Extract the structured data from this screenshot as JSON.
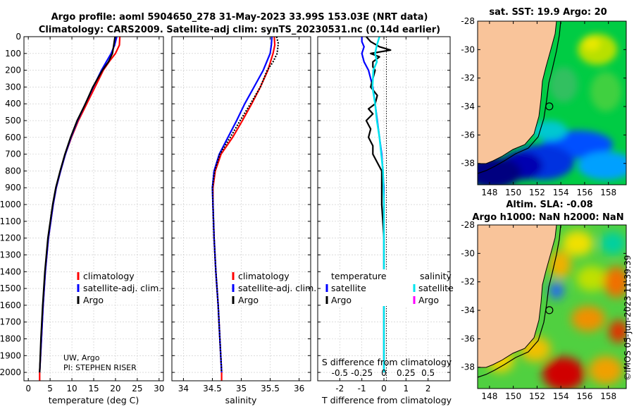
{
  "title": {
    "line1": "Argo profile: aoml 5904650_278 31-May-2023 33.99S 153.03E (NRT data)",
    "line2": "Climatology: CARS2009. Satellite-adj clim: synTS_20230531.nc (0.14d earlier)"
  },
  "credit": {
    "line1": "UW, Argo",
    "line2": "PI: STEPHEN RISER"
  },
  "watermark": "©IMOS 05-Jun-2023 11:39:39",
  "colors": {
    "climatology": "#ff0000",
    "satellite": "#0000ff",
    "argo": "#000000",
    "sal_sat": "#00e5ee",
    "sal_argo": "#ff00ff",
    "land": "#f9c49a"
  },
  "legend1": {
    "climatology": "climatology",
    "satellite": "satellite-adj. clim.",
    "argo": "Argo"
  },
  "legend3": {
    "temperature_header": "temperature",
    "salinity_header": "salinity",
    "t_sat": "satellite",
    "t_argo": "Argo",
    "s_sat": "satellite",
    "s_argo": "Argo"
  },
  "chart_data": [
    {
      "type": "line",
      "id": "temperature",
      "xlabel": "temperature (deg C)",
      "ylabel": "",
      "xlim": [
        -1,
        31
      ],
      "ylim": [
        2050,
        0
      ],
      "xticks": [
        "0",
        "5",
        "10",
        "15",
        "20",
        "25",
        "30"
      ],
      "yticks": [
        "0",
        "100",
        "200",
        "300",
        "400",
        "500",
        "600",
        "700",
        "800",
        "900",
        "1000",
        "1100",
        "1200",
        "1300",
        "1400",
        "1500",
        "1600",
        "1700",
        "1800",
        "1900",
        "2000"
      ],
      "series": [
        {
          "name": "climatology",
          "depth": [
            0,
            50,
            100,
            150,
            200,
            300,
            400,
            500,
            600,
            700,
            800,
            900,
            1000,
            1200,
            1400,
            1600,
            1800,
            2000,
            2050
          ],
          "values": [
            21.0,
            20.9,
            20.0,
            18.5,
            17.2,
            15.3,
            13.4,
            11.5,
            9.9,
            8.5,
            7.4,
            6.4,
            5.7,
            4.6,
            3.9,
            3.4,
            3.0,
            2.6,
            2.6
          ]
        },
        {
          "name": "satellite-adj. clim.",
          "depth": [
            0,
            50,
            100,
            150,
            200,
            300,
            400,
            500,
            600,
            700,
            800,
            900,
            1000,
            1200,
            1400,
            1600,
            1800,
            2000
          ],
          "values": [
            20.3,
            19.8,
            19.0,
            17.9,
            16.8,
            14.9,
            13.1,
            11.3,
            9.8,
            8.5,
            7.4,
            6.4,
            5.7,
            4.6,
            3.9,
            3.4,
            3.0,
            2.6
          ]
        },
        {
          "name": "Argo",
          "depth": [
            0,
            50,
            100,
            150,
            200,
            300,
            400,
            500,
            600,
            700,
            800,
            900,
            1000,
            1200,
            1400,
            1600,
            1800,
            2000
          ],
          "values": [
            19.9,
            19.6,
            19.3,
            18.4,
            17.0,
            14.8,
            13.1,
            11.2,
            9.7,
            8.4,
            7.3,
            6.3,
            5.6,
            4.5,
            3.8,
            3.3,
            2.9,
            2.6
          ]
        }
      ]
    },
    {
      "type": "line",
      "id": "salinity",
      "xlabel": "salinity",
      "ylabel": "",
      "xlim": [
        33.8,
        36.2
      ],
      "ylim": [
        2050,
        0
      ],
      "xticks": [
        "34",
        "34.5",
        "35",
        "35.5",
        "36"
      ],
      "series": [
        {
          "name": "climatology",
          "depth": [
            0,
            50,
            100,
            200,
            300,
            400,
            500,
            600,
            700,
            800,
            900,
            1000,
            1200,
            1400,
            1600,
            1800,
            2000,
            2050
          ],
          "values": [
            35.57,
            35.58,
            35.55,
            35.46,
            35.33,
            35.18,
            35.02,
            34.85,
            34.65,
            34.55,
            34.51,
            34.51,
            34.53,
            34.56,
            34.6,
            34.63,
            34.66,
            34.66
          ]
        },
        {
          "name": "satellite-adj. clim.",
          "depth": [
            0,
            50,
            100,
            200,
            300,
            400,
            500,
            600,
            700,
            800,
            900,
            1000,
            1200,
            1400,
            1600,
            1800,
            2000
          ],
          "values": [
            35.53,
            35.52,
            35.5,
            35.38,
            35.22,
            35.06,
            34.92,
            34.77,
            34.62,
            34.53,
            34.5,
            34.51,
            34.53,
            34.56,
            34.6,
            34.63,
            34.66
          ]
        },
        {
          "name": "Argo",
          "depth": [
            0,
            40,
            100,
            150,
            200,
            300,
            400,
            500,
            600,
            700,
            800,
            900,
            1000,
            1200,
            1400,
            1600,
            1800,
            2000
          ],
          "values": [
            35.61,
            35.64,
            35.62,
            35.55,
            35.45,
            35.33,
            35.16,
            34.98,
            34.81,
            34.63,
            34.54,
            34.5,
            34.51,
            34.53,
            34.56,
            34.6,
            34.63,
            34.66
          ]
        }
      ]
    },
    {
      "type": "line",
      "id": "difference",
      "xlabel": "T difference from climatology",
      "xlabel_top": "S difference from climatology",
      "xlim": [
        -3,
        3
      ],
      "ylim": [
        2050,
        0
      ],
      "xticks": [
        "-2",
        "-1",
        "0",
        "1",
        "2"
      ],
      "sticks": [
        "-0.5",
        "-0.25",
        "0",
        "0.25",
        "0.5"
      ],
      "series": [
        {
          "name": "T satellite",
          "depth": [
            0,
            30,
            60,
            100,
            150,
            200,
            250,
            300,
            400,
            500,
            600,
            700,
            800,
            900,
            1000,
            1500,
            2000
          ],
          "values": [
            -1.0,
            -1.0,
            -0.9,
            -1.0,
            -0.9,
            -0.7,
            -0.6,
            -0.5,
            -0.4,
            -0.3,
            -0.2,
            -0.1,
            -0.05,
            0,
            0,
            0,
            0
          ]
        },
        {
          "name": "T Argo",
          "depth": [
            0,
            30,
            60,
            80,
            100,
            120,
            150,
            180,
            200,
            250,
            300,
            350,
            400,
            430,
            460,
            500,
            550,
            600,
            650,
            700,
            750,
            800,
            900,
            1000,
            1200,
            1500,
            2000
          ],
          "values": [
            -0.8,
            -0.6,
            -0.2,
            0.3,
            -0.6,
            -0.2,
            -0.5,
            -0.5,
            -0.4,
            -0.5,
            -0.6,
            -0.3,
            -0.4,
            -0.7,
            -0.5,
            -0.8,
            -0.6,
            -0.7,
            -0.5,
            -0.5,
            -0.3,
            -0.1,
            -0.1,
            -0.1,
            0,
            0,
            0
          ]
        },
        {
          "name": "S satellite",
          "depth": [
            0,
            50,
            100,
            150,
            200,
            300,
            400,
            500,
            600,
            700,
            800,
            1000,
            1500,
            2000
          ],
          "values": [
            -0.05,
            -0.08,
            -0.1,
            -0.08,
            -0.12,
            -0.13,
            -0.1,
            -0.08,
            -0.05,
            -0.03,
            -0.01,
            0,
            0,
            0
          ]
        },
        {
          "name": "S Argo",
          "depth": [],
          "values": []
        }
      ]
    },
    {
      "type": "heatmap",
      "id": "sst_map",
      "title": "sat. SST: 19.9 Argo: 20",
      "xticks": [
        "148",
        "150",
        "152",
        "154",
        "156",
        "158"
      ],
      "yticks": [
        "-28",
        "-30",
        "-32",
        "-34",
        "-36",
        "-38"
      ],
      "xlim": [
        147,
        159.5
      ],
      "ylim": [
        -28,
        -39.5
      ],
      "float_position": {
        "lon": 153.03,
        "lat": -33.99
      }
    },
    {
      "type": "heatmap",
      "id": "sla_map",
      "title1": "Altim. SLA: -0.08",
      "title2": "Argo h1000: NaN h2000: NaN",
      "xticks": [
        "148",
        "150",
        "152",
        "154",
        "156",
        "158"
      ],
      "yticks": [
        "-28",
        "-30",
        "-32",
        "-34",
        "-36",
        "-38"
      ],
      "xlim": [
        147,
        159.5
      ],
      "ylim": [
        -28,
        -39.5
      ],
      "float_position": {
        "lon": 153.03,
        "lat": -33.99
      }
    }
  ]
}
